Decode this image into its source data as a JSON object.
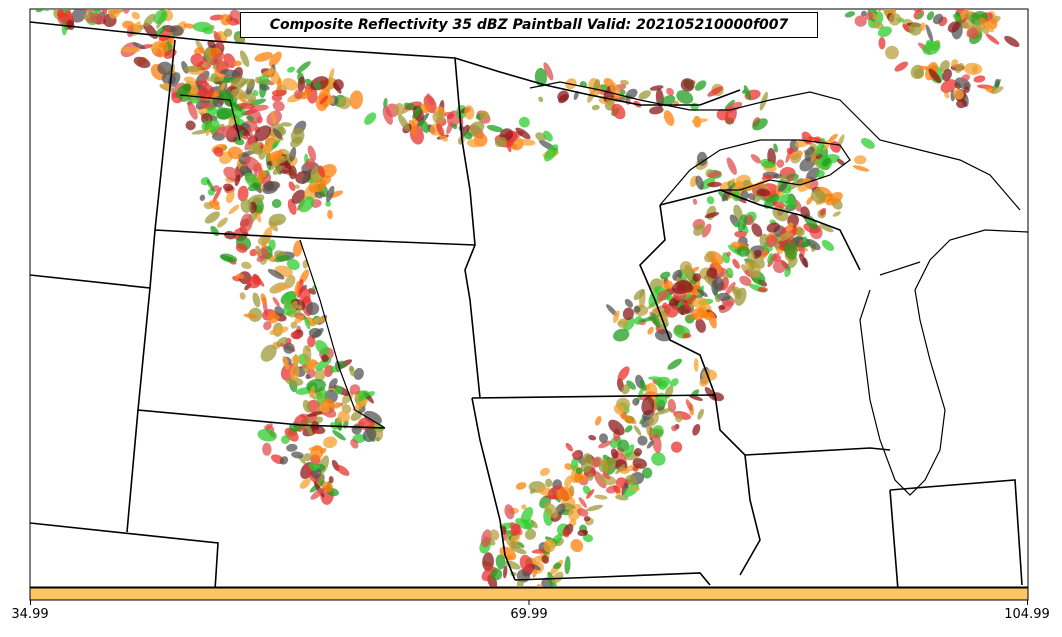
{
  "title": "Composite Reflectivity 35 dBZ Paintball Valid: 202105210000f007",
  "colorbar": {
    "color": "#ffc464",
    "ticks": [
      "34.99",
      "69.99",
      "104.99"
    ]
  },
  "palette": [
    "#e8322e",
    "#ff7f0e",
    "#f5a030",
    "#2ecc2e",
    "#1f9e1f",
    "#8b1a1a",
    "#9a9a3a",
    "#b8a040",
    "#555555",
    "#e05050"
  ],
  "basemap": {
    "projection": "lambert-conformal",
    "features": [
      "state-borders",
      "country-border",
      "coastlines-great-lakes"
    ]
  }
}
